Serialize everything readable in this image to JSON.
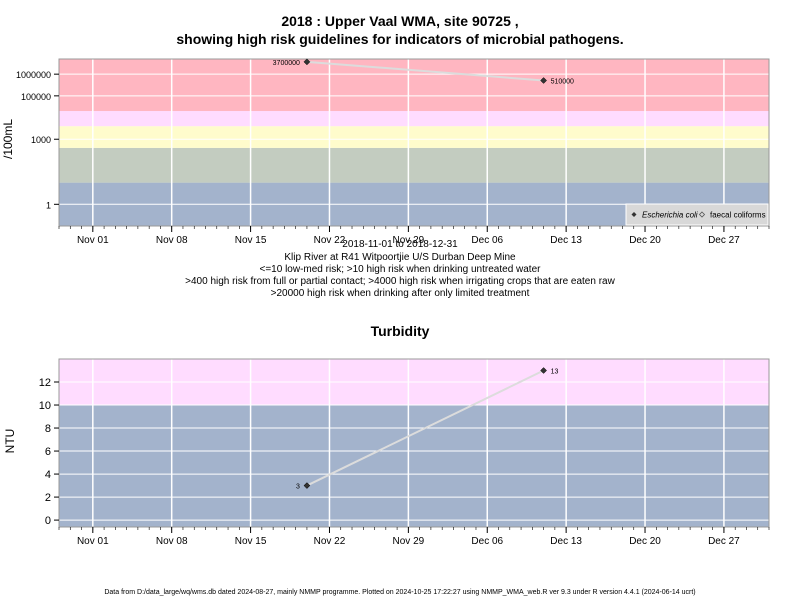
{
  "title_line1": "2018 : Upper Vaal WMA, site 90725 ,",
  "title_line2": "showing high risk guidelines for indicators of microbial pathogens.",
  "subtitle_lines": [
    "2018-11-01 to 2018-12-31",
    "Klip River at R41 Witpoortjie U/S Durban Deep Mine",
    "<=10 low-med risk; >10 high risk when drinking untreated water",
    ">400 high risk from full or partial contact; >4000 high risk when irrigating crops that are eaten raw",
    ">20000 high risk when drinking after only limited treatment"
  ],
  "footer": "Data from D:/data_large/wq/wms.db dated 2024-08-27, mainly NMMP programme. Plotted on 2024-10-25 17:22:27 using NMMP_WMA_web.R ver 9.3 under R version 4.4.1 (2024-06-14 ucrt)",
  "chart_data": [
    {
      "type": "line",
      "title": "2018 : Upper Vaal WMA, site 90725 , showing high risk guidelines for indicators of microbial pathogens.",
      "ylabel": "/100mL",
      "xlabel": "",
      "y_scale": "log",
      "ylim": [
        0.1,
        5000000
      ],
      "xlim": [
        "2018-10-29",
        "2018-12-31"
      ],
      "x_ticks": [
        "2018-11-01",
        "2018-11-08",
        "2018-11-15",
        "2018-11-22",
        "2018-11-29",
        "2018-12-06",
        "2018-12-13",
        "2018-12-20",
        "2018-12-27"
      ],
      "x_tick_labels": [
        "Nov 01",
        "Nov 08",
        "Nov 15",
        "Nov 22",
        "Nov 29",
        "Dec 06",
        "Dec 13",
        "Dec 20",
        "Dec 27"
      ],
      "y_ticks": [
        1,
        1000,
        100000,
        1000000
      ],
      "y_tick_labels": [
        "1",
        "1000",
        "100000",
        "1000000"
      ],
      "grid": true,
      "legend_position": "bottom-right",
      "bands": [
        {
          "from": 0.1,
          "to": 10,
          "color": "#a3b3cc"
        },
        {
          "from": 10,
          "to": 400,
          "color": "#c3ccc0"
        },
        {
          "from": 400,
          "to": 4000,
          "color": "#fffccc"
        },
        {
          "from": 4000,
          "to": 20000,
          "color": "#ffdcff"
        },
        {
          "from": 20000,
          "to": 5000000,
          "color": "#ffb6c1"
        }
      ],
      "series": [
        {
          "name": "Escherichia coli",
          "marker": "diamond-filled",
          "points": [
            {
              "x": "2018-11-20",
              "y": 3700000,
              "label": "3700000"
            },
            {
              "x": "2018-12-11",
              "y": 510000,
              "label": "510000"
            }
          ]
        },
        {
          "name": "faecal coliforms",
          "marker": "diamond-open",
          "points": []
        }
      ]
    },
    {
      "type": "line",
      "title": "Turbidity",
      "ylabel": "NTU",
      "xlabel": "",
      "ylim": [
        -0.6,
        14
      ],
      "xlim": [
        "2018-10-29",
        "2018-12-31"
      ],
      "x_ticks": [
        "2018-11-01",
        "2018-11-08",
        "2018-11-15",
        "2018-11-22",
        "2018-11-29",
        "2018-12-06",
        "2018-12-13",
        "2018-12-20",
        "2018-12-27"
      ],
      "x_tick_labels": [
        "Nov 01",
        "Nov 08",
        "Nov 15",
        "Nov 22",
        "Nov 29",
        "Dec 06",
        "Dec 13",
        "Dec 20",
        "Dec 27"
      ],
      "y_ticks": [
        0,
        2,
        4,
        6,
        8,
        10,
        12
      ],
      "y_tick_labels": [
        "0",
        "2",
        "4",
        "6",
        "8",
        "10",
        "12"
      ],
      "grid": true,
      "bands": [
        {
          "from": -0.6,
          "to": 10,
          "color": "#a3b3cc"
        },
        {
          "from": 10,
          "to": 14,
          "color": "#ffdcff"
        }
      ],
      "series": [
        {
          "points": [
            {
              "x": "2018-11-20",
              "y": 3,
              "label": "3"
            },
            {
              "x": "2018-12-11",
              "y": 13,
              "label": "13"
            }
          ]
        }
      ]
    }
  ]
}
